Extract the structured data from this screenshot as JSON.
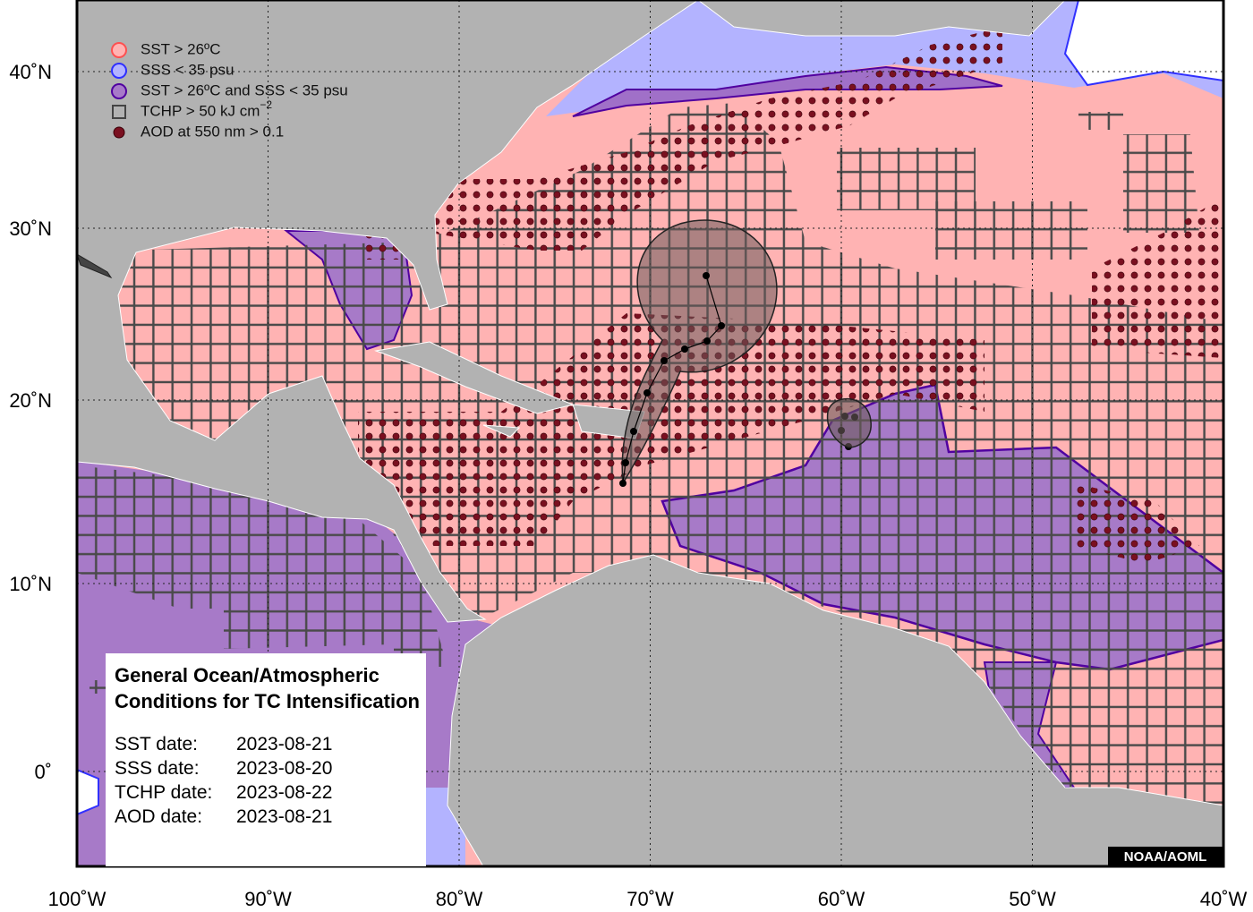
{
  "legend": [
    {
      "text": "SST > 26ºC"
    },
    {
      "text": "SSS < 35 psu"
    },
    {
      "text": "SST > 26ºC and SSS < 35 psu"
    },
    {
      "text": "TCHP > 50 kJ cm",
      "superscript": "−2"
    },
    {
      "text": "AOD at 550 nm > 0.1"
    }
  ],
  "x_labels": [
    "100˚W",
    "90˚W",
    "80˚W",
    "70˚W",
    "60˚W",
    "50˚W",
    "40˚W"
  ],
  "y_labels": [
    "40˚N",
    "30˚N",
    "20˚N",
    "10˚N",
    "0˚"
  ],
  "info_box": {
    "title": [
      "General Ocean/Atmospheric",
      "Conditions for TC Intensification"
    ],
    "dates": [
      {
        "label": "SST date:",
        "date": "2023-08-21"
      },
      {
        "label": "SSS date:",
        "date": "2023-08-20"
      },
      {
        "label": "TCHP date:",
        "date": "2023-08-22"
      },
      {
        "label": "AOD date:",
        "date": "2023-08-21"
      }
    ]
  },
  "credit": "NOAA/AOML"
}
